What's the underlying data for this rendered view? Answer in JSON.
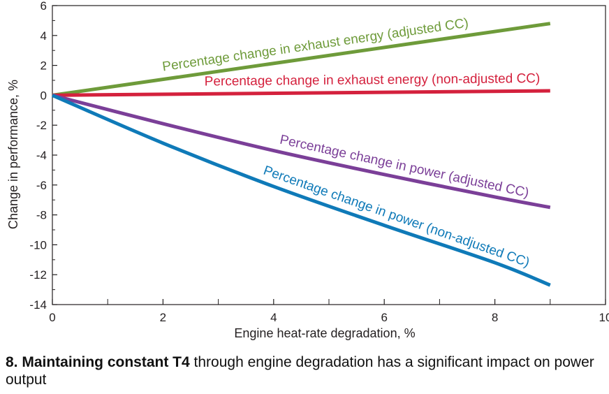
{
  "chart_data": {
    "type": "line",
    "xlabel": "Engine heat-rate degradation, %",
    "ylabel": "Change in performance, %",
    "xlim": [
      0,
      10
    ],
    "ylim": [
      -14,
      6
    ],
    "x_ticks": [
      "0",
      "2",
      "4",
      "6",
      "8",
      "10"
    ],
    "y_ticks": [
      "6",
      "4",
      "2",
      "0",
      "-2",
      "-4",
      "-6",
      "-8",
      "-10",
      "-12",
      "-14"
    ],
    "grid": false,
    "series": [
      {
        "name": "Percentage change in exhaust energy (adjusted CC)",
        "color": "#6e9b3a",
        "x": [
          0,
          9.0
        ],
        "y": [
          0,
          4.8
        ]
      },
      {
        "name": "Percentage change in exhaust energy (non-adjusted CC)",
        "color": "#d4213d",
        "x": [
          0,
          9.0
        ],
        "y": [
          0,
          0.3
        ]
      },
      {
        "name": "Percentage change in power (adjusted CC)",
        "color": "#7b3f98",
        "x": [
          0,
          2,
          4,
          6,
          8,
          9.0
        ],
        "y": [
          0,
          -1.9,
          -3.7,
          -5.3,
          -6.8,
          -7.5
        ]
      },
      {
        "name": "Percentage change in power (non-adjusted CC)",
        "color": "#0f7ab8",
        "x": [
          0,
          2,
          4,
          6,
          8,
          9.0
        ],
        "y": [
          0,
          -3.2,
          -6.1,
          -8.7,
          -11.2,
          -12.7
        ]
      }
    ]
  },
  "caption": {
    "bold": "8. Maintaining constant T4",
    "text": " through engine degradation has a significant impact on power output"
  }
}
